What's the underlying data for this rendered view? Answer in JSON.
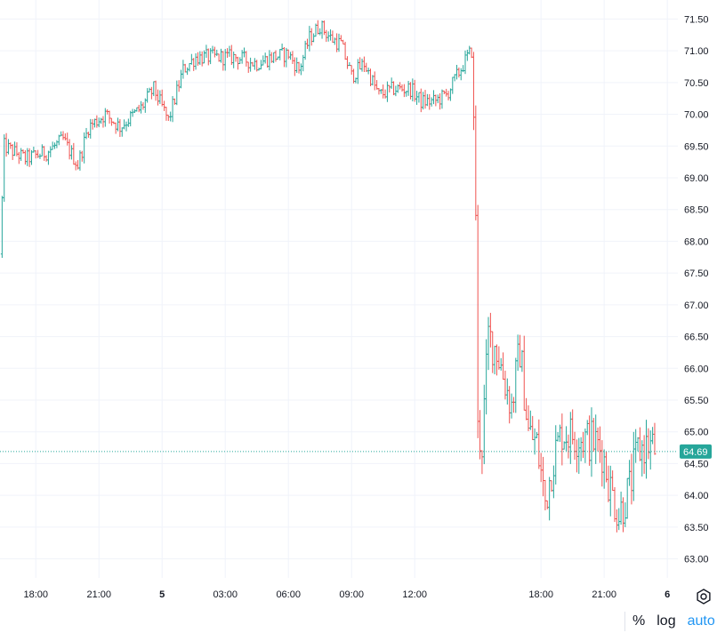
{
  "chart_data": {
    "type": "ohlc",
    "y_ticks": [
      "71.50",
      "71.00",
      "70.50",
      "70.00",
      "69.50",
      "69.00",
      "68.50",
      "68.00",
      "67.50",
      "67.00",
      "66.50",
      "66.00",
      "65.50",
      "65.00",
      "64.50",
      "64.00",
      "63.50",
      "63.00"
    ],
    "x_ticks": [
      {
        "label": "18:00",
        "hour": 18,
        "bold": false
      },
      {
        "label": "21:00",
        "hour": 21,
        "bold": false
      },
      {
        "label": "5",
        "hour": 24,
        "bold": true
      },
      {
        "label": "03:00",
        "hour": 27,
        "bold": false
      },
      {
        "label": "06:00",
        "hour": 30,
        "bold": false
      },
      {
        "label": "09:00",
        "hour": 33,
        "bold": false
      },
      {
        "label": "12:00",
        "hour": 36,
        "bold": false
      },
      {
        "label": "18:00",
        "hour": 42,
        "bold": false
      },
      {
        "label": "21:00",
        "hour": 45,
        "bold": false
      },
      {
        "label": "6",
        "hour": 48,
        "bold": true
      }
    ],
    "ylim": [
      62.7,
      71.8
    ],
    "x_range_hours": [
      16.3,
      48.5
    ],
    "last_price": 64.69,
    "last_price_label": "64.69",
    "grid": true,
    "colors": {
      "up": "#26a69a",
      "down": "#ef5350",
      "grid": "#f0f3fa",
      "last_price": "#26a69a"
    },
    "path": [
      [
        16.3,
        67.8
      ],
      [
        16.5,
        69.5
      ],
      [
        17.5,
        69.3
      ],
      [
        18.5,
        69.4
      ],
      [
        19.3,
        69.6
      ],
      [
        20.0,
        69.2
      ],
      [
        20.5,
        69.8
      ],
      [
        21.3,
        70.0
      ],
      [
        22.0,
        69.8
      ],
      [
        23.0,
        70.1
      ],
      [
        23.6,
        70.4
      ],
      [
        24.3,
        69.9
      ],
      [
        25.0,
        70.7
      ],
      [
        25.6,
        70.9
      ],
      [
        26.5,
        70.9
      ],
      [
        27.5,
        70.9
      ],
      [
        28.5,
        70.8
      ],
      [
        29.2,
        70.9
      ],
      [
        30.0,
        70.95
      ],
      [
        30.5,
        70.7
      ],
      [
        31.0,
        71.2
      ],
      [
        31.5,
        71.4
      ],
      [
        32.0,
        71.2
      ],
      [
        32.5,
        71.1
      ],
      [
        33.0,
        70.6
      ],
      [
        33.6,
        70.8
      ],
      [
        34.3,
        70.3
      ],
      [
        35.0,
        70.4
      ],
      [
        35.8,
        70.4
      ],
      [
        36.3,
        70.2
      ],
      [
        36.9,
        70.2
      ],
      [
        37.5,
        70.3
      ],
      [
        38.0,
        70.6
      ],
      [
        38.5,
        70.9
      ],
      [
        38.7,
        71.0
      ],
      [
        38.9,
        68.5
      ],
      [
        39.0,
        65.0
      ],
      [
        39.2,
        64.8
      ],
      [
        39.5,
        66.5
      ],
      [
        39.9,
        66.3
      ],
      [
        40.2,
        65.9
      ],
      [
        40.6,
        65.4
      ],
      [
        41.0,
        66.3
      ],
      [
        41.4,
        65.0
      ],
      [
        41.8,
        64.8
      ],
      [
        42.2,
        63.9
      ],
      [
        42.6,
        64.6
      ],
      [
        43.0,
        65.0
      ],
      [
        43.5,
        64.95
      ],
      [
        44.0,
        64.9
      ],
      [
        44.5,
        64.85
      ],
      [
        44.9,
        64.7
      ],
      [
        45.3,
        64.1
      ],
      [
        45.7,
        63.7
      ],
      [
        46.2,
        64.1
      ],
      [
        46.6,
        64.7
      ],
      [
        47.1,
        64.8
      ],
      [
        47.5,
        64.7
      ]
    ]
  },
  "scale_options": {
    "percent": "%",
    "log": "log",
    "auto": "auto"
  },
  "icons": {
    "settings": "settings-gear-icon"
  }
}
